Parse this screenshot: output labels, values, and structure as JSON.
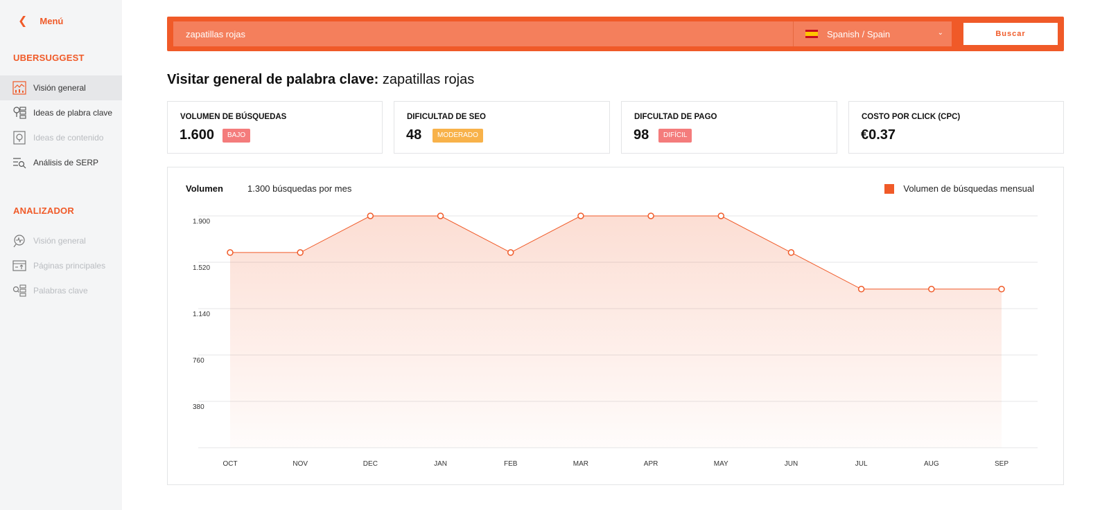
{
  "sidebar": {
    "back_label": "Menú",
    "sections": [
      {
        "title": "UBERSUGGEST",
        "items": [
          {
            "label": "Visión general",
            "icon": "overview-icon",
            "state": "active"
          },
          {
            "label": "Ideas de plabra clave",
            "icon": "keyword-ideas-icon",
            "state": "normal"
          },
          {
            "label": "Ideas de contenido",
            "icon": "content-ideas-icon",
            "state": "disabled"
          },
          {
            "label": "Análisis de SERP",
            "icon": "serp-analysis-icon",
            "state": "normal"
          }
        ]
      },
      {
        "title": "ANALIZADOR",
        "items": [
          {
            "label": "Visión general",
            "icon": "analyzer-overview-icon",
            "state": "disabled"
          },
          {
            "label": "Páginas principales",
            "icon": "top-pages-icon",
            "state": "disabled"
          },
          {
            "label": "Palabras clave",
            "icon": "keywords-icon",
            "state": "disabled"
          }
        ]
      }
    ]
  },
  "search": {
    "query": "zapatillas rojas",
    "language": "Spanish / Spain",
    "language_flag": "spain-flag-icon",
    "button_label": "Buscar"
  },
  "page": {
    "title_prefix": "Visitar general de palabra clave:",
    "keyword": "zapatillas rojas"
  },
  "metrics": [
    {
      "label": "VOLUMEN DE BÚSQUEDAS",
      "value": "1.600",
      "badge": "BAJO",
      "badge_color": "#f47c7c"
    },
    {
      "label": "DIFICULTAD DE SEO",
      "value": "48",
      "badge": "MODERADO",
      "badge_color": "#f8b24a"
    },
    {
      "label": "DIFCULTAD DE PAGO",
      "value": "98",
      "badge": "DIFÍCIL",
      "badge_color": "#f47c7c"
    },
    {
      "label": "COSTO POR CLICK (CPC)",
      "value": "€0.37",
      "badge": "",
      "badge_color": ""
    }
  ],
  "chart_header": {
    "label": "Volumen",
    "subtitle": "1.300 búsquedas por mes",
    "legend": "Volumen de búsquedas mensual"
  },
  "colors": {
    "accent": "#f05a28",
    "accent_light": "#f47f5c"
  },
  "chart_data": {
    "type": "area",
    "categories": [
      "OCT",
      "NOV",
      "DEC",
      "JAN",
      "FEB",
      "MAR",
      "APR",
      "MAY",
      "JUN",
      "JUL",
      "AUG",
      "SEP"
    ],
    "series": [
      {
        "name": "Volumen de búsquedas mensual",
        "values": [
          1600,
          1600,
          1900,
          1900,
          1600,
          1900,
          1900,
          1900,
          1600,
          1300,
          1300,
          1300
        ]
      }
    ],
    "yticks": [
      380,
      760,
      1140,
      1520,
      1900
    ],
    "ytick_labels": [
      "380",
      "760",
      "1.140",
      "1.520",
      "1.900"
    ],
    "ylim": [
      0,
      1900
    ],
    "grid": true,
    "legend_position": "top-right"
  }
}
